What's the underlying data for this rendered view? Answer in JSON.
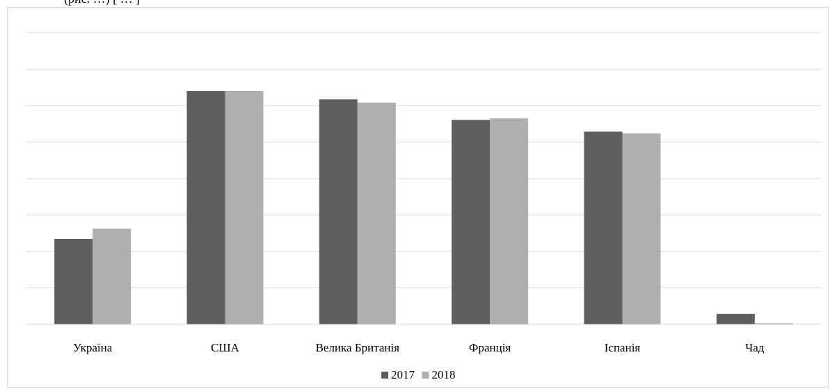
{
  "header_fragment": "(рис. …) [ … ]",
  "chart_data": {
    "type": "bar",
    "title": "",
    "xlabel": "",
    "ylabel": "",
    "categories": [
      "Україна",
      "США",
      "Велика Британія",
      "Франція",
      "Іспанія",
      "Чад"
    ],
    "series": [
      {
        "name": "2017",
        "color": "#5f5f5f",
        "values": [
          0.366,
          1.0,
          0.964,
          0.876,
          0.826,
          0.045
        ]
      },
      {
        "name": "2018",
        "color": "#afafaf",
        "values": [
          0.41,
          1.0,
          0.95,
          0.883,
          0.818,
          0.005
        ]
      }
    ],
    "ylim": [
      0,
      1.25
    ],
    "yticks_shown": false,
    "grid": true,
    "legend": "bottom-center"
  },
  "colors": {
    "gridline": "#d9d9d9",
    "frame": "#d9d9d9",
    "axis": "#d9d9d9"
  }
}
